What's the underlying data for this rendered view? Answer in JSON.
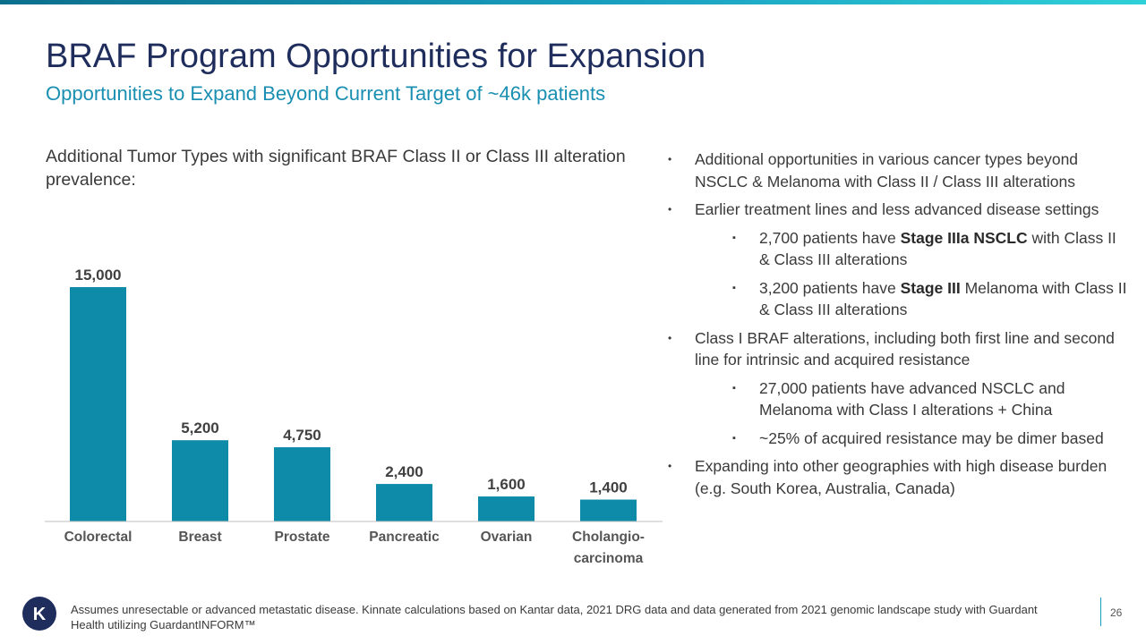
{
  "header": {
    "title": "BRAF Program Opportunities for Expansion",
    "subtitle": "Opportunities to Expand Beyond Current Target of ~46k patients"
  },
  "lead": "Additional Tumor Types with significant BRAF Class II or Class III alteration prevalence:",
  "chart_data": {
    "type": "bar",
    "categories": [
      "Colorectal",
      "Breast",
      "Prostate",
      "Pancreatic",
      "Ovarian",
      "Cholangio-\ncarcinoma"
    ],
    "values": [
      15000,
      5200,
      4750,
      2400,
      1600,
      1400
    ],
    "value_labels": [
      "15,000",
      "5,200",
      "4,750",
      "2,400",
      "1,600",
      "1,400"
    ],
    "title": "",
    "xlabel": "",
    "ylabel": "",
    "ylim": [
      0,
      15000
    ],
    "bar_color": "#0e8ba8",
    "grid": false,
    "legend": "none"
  },
  "bullets": [
    {
      "level": 1,
      "parts": [
        {
          "t": "Additional opportunities in various cancer types beyond NSCLC & Melanoma with Class II / Class III alterations"
        }
      ]
    },
    {
      "level": 1,
      "parts": [
        {
          "t": "Earlier treatment lines and less advanced disease settings"
        }
      ]
    },
    {
      "level": 2,
      "parts": [
        {
          "t": "2,700 patients have "
        },
        {
          "t": "Stage IIIa NSCLC",
          "b": true
        },
        {
          "t": " with Class II & Class III alterations"
        }
      ]
    },
    {
      "level": 2,
      "parts": [
        {
          "t": "3,200 patients have "
        },
        {
          "t": "Stage III",
          "b": true
        },
        {
          "t": " Melanoma with Class II & Class III alterations"
        }
      ]
    },
    {
      "level": 1,
      "parts": [
        {
          "t": "Class I BRAF alterations, including both first line and second line for intrinsic and acquired resistance"
        }
      ]
    },
    {
      "level": 2,
      "parts": [
        {
          "t": "27,000 patients have advanced NSCLC and Melanoma with Class I alterations + China"
        }
      ]
    },
    {
      "level": 2,
      "parts": [
        {
          "t": "~25% of acquired resistance may be dimer based"
        }
      ]
    },
    {
      "level": 1,
      "parts": [
        {
          "t": "Expanding into other geographies with high disease burden (e.g. South Korea, Australia, Canada)"
        }
      ]
    }
  ],
  "bullet_markers": {
    "level1": "•",
    "level2": "▪"
  },
  "footer": {
    "logo_letter": "K",
    "footnote": "Assumes unresectable or advanced metastatic disease. Kinnate calculations based on Kantar data, 2021 DRG data and data generated from 2021 genomic landscape study with Guardant Health utilizing GuardantINFORM™",
    "page_number": "26"
  },
  "colors": {
    "title": "#1f2d5c",
    "subtitle": "#1a8fb2",
    "bar": "#0e8ba8",
    "logo_bg": "#1f2d5c"
  }
}
